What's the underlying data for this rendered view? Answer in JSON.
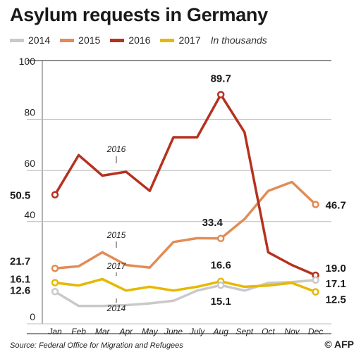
{
  "title": "Asylum requests in Germany",
  "unit_note": "In thousands",
  "source": "Source: Federal Office for Migration and Refugees",
  "logo": "© AFP",
  "colors": {
    "2014": "#c9c9c9",
    "2015": "#e38b55",
    "2016": "#b5321f",
    "2017": "#e6b800"
  },
  "chart_data": {
    "type": "line",
    "categories": [
      "Jan",
      "Feb",
      "Mar",
      "Apr",
      "May",
      "June",
      "July",
      "Aug",
      "Sept",
      "Oct",
      "Nov",
      "Dec"
    ],
    "ylim": [
      0,
      100
    ],
    "yticks": [
      0,
      40,
      60,
      80,
      100
    ],
    "grid": true,
    "legend_placement": "top",
    "series": [
      {
        "name": "2014",
        "values": [
          12.6,
          7,
          7,
          7.3,
          8,
          9,
          13,
          15.1,
          13,
          16,
          16.3,
          17.1
        ]
      },
      {
        "name": "2015",
        "values": [
          21.7,
          22.5,
          28,
          23,
          22,
          32,
          33.5,
          33.4,
          41,
          52,
          55.5,
          46.7
        ]
      },
      {
        "name": "2016",
        "values": [
          50.5,
          66,
          58,
          59.5,
          52,
          73,
          73,
          89.7,
          75,
          28,
          23,
          19.0
        ]
      },
      {
        "name": "2017",
        "values": [
          16.1,
          15,
          17.5,
          13,
          14.5,
          13,
          14.5,
          16.6,
          14.5,
          15,
          16,
          12.5
        ]
      }
    ],
    "series_labels": [
      "2016",
      "2015",
      "2017",
      "2014"
    ],
    "annotations": [
      {
        "text": "50.5",
        "series": "2016",
        "index": 0
      },
      {
        "text": "89.7",
        "series": "2016",
        "index": 7
      },
      {
        "text": "19.0",
        "series": "2016",
        "index": 11
      },
      {
        "text": "21.7",
        "series": "2015",
        "index": 0
      },
      {
        "text": "33.4",
        "series": "2015",
        "index": 7
      },
      {
        "text": "46.7",
        "series": "2015",
        "index": 11
      },
      {
        "text": "16.1",
        "series": "2017",
        "index": 0
      },
      {
        "text": "16.6",
        "series": "2017",
        "index": 7
      },
      {
        "text": "12.5",
        "series": "2017",
        "index": 11
      },
      {
        "text": "12.6",
        "series": "2014",
        "index": 0
      },
      {
        "text": "15.1",
        "series": "2014",
        "index": 7
      },
      {
        "text": "17.1",
        "series": "2014",
        "index": 11
      }
    ]
  }
}
